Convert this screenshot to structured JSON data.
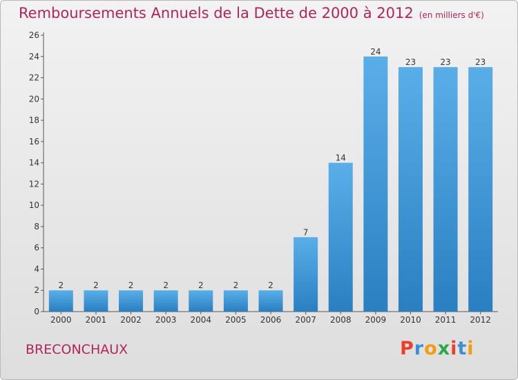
{
  "title": "Remboursements Annuels de la Dette de 2000 à 2012",
  "subtitle": "(en milliers d'€)",
  "town": "BRECONCHAUX",
  "logo": {
    "letters": [
      "P",
      "r",
      "o",
      "x",
      "i",
      "t",
      "i"
    ],
    "colors": [
      "#e8402b",
      "#3b8fd6",
      "#f39c12",
      "#2aa84a",
      "#e8402b",
      "#3b8fd6",
      "#f39c12"
    ]
  },
  "colors": {
    "bar_top": "#5aaee8",
    "bar_bottom": "#2a7fc1",
    "title": "#b0245a"
  },
  "chart_data": {
    "type": "bar",
    "title": "Remboursements Annuels de la Dette de 2000 à 2012",
    "subtitle": "(en milliers d'€)",
    "categories": [
      "2000",
      "2001",
      "2002",
      "2003",
      "2004",
      "2005",
      "2006",
      "2007",
      "2008",
      "2009",
      "2010",
      "2011",
      "2012"
    ],
    "values": [
      2,
      2,
      2,
      2,
      2,
      2,
      2,
      7,
      14,
      24,
      23,
      23,
      23
    ],
    "ylim": [
      0,
      26
    ],
    "yticks": [
      0,
      2,
      4,
      6,
      8,
      10,
      12,
      14,
      16,
      18,
      20,
      22,
      24,
      26
    ],
    "grid": false
  }
}
